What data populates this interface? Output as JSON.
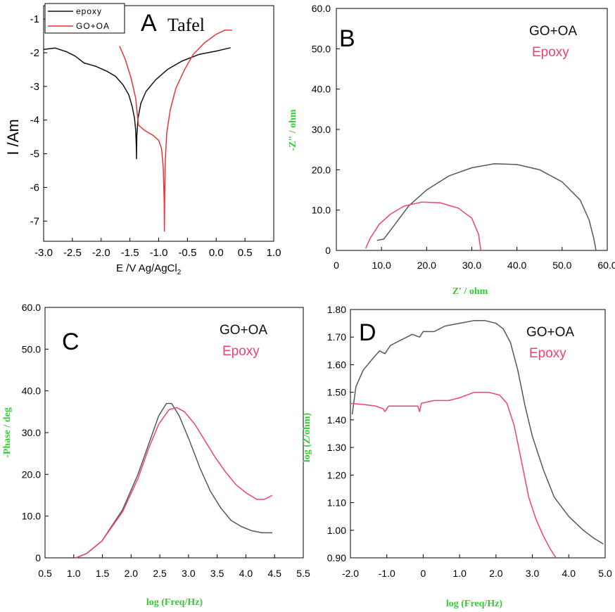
{
  "colors": {
    "gray": "#4f5a60",
    "pink": "#f0426e",
    "black": "#111111",
    "red": "#e8343a",
    "green": "#33cc33"
  },
  "chart_data": [
    {
      "id": "A",
      "letter": "A",
      "title": "Tafel",
      "type": "line",
      "xlabel": "E /V Ag/AgCl",
      "xlabel_sub": "2",
      "ylabel": "I /Am",
      "xlim": [
        -3.0,
        1.0
      ],
      "ylim": [
        -7.6,
        -0.6
      ],
      "xticks": [
        "-3.0",
        "-2.5",
        "-2.0",
        "-1.5",
        "-1.0",
        "-0.5",
        "0.0",
        "0.5",
        "1.0"
      ],
      "yticks": [
        "-1",
        "-2",
        "-3",
        "-4",
        "-5",
        "-6",
        "-7"
      ],
      "legend_position": "top-left",
      "series": [
        {
          "name": "epoxy",
          "color": "#111111",
          "points": [
            [
              -3.0,
              -1.9
            ],
            [
              -2.8,
              -1.86
            ],
            [
              -2.6,
              -1.97
            ],
            [
              -2.45,
              -2.1
            ],
            [
              -2.3,
              -2.3
            ],
            [
              -2.1,
              -2.4
            ],
            [
              -1.9,
              -2.55
            ],
            [
              -1.75,
              -2.7
            ],
            [
              -1.62,
              -2.95
            ],
            [
              -1.52,
              -3.25
            ],
            [
              -1.46,
              -3.6
            ],
            [
              -1.42,
              -3.95
            ],
            [
              -1.4,
              -4.3
            ],
            [
              -1.39,
              -4.7
            ],
            [
              -1.385,
              -5.15
            ],
            [
              -1.38,
              -4.5
            ],
            [
              -1.36,
              -3.95
            ],
            [
              -1.31,
              -3.5
            ],
            [
              -1.22,
              -3.15
            ],
            [
              -1.05,
              -2.8
            ],
            [
              -0.85,
              -2.5
            ],
            [
              -0.6,
              -2.25
            ],
            [
              -0.3,
              -2.05
            ],
            [
              0.0,
              -1.95
            ],
            [
              0.25,
              -1.85
            ]
          ]
        },
        {
          "name": "GO+OA",
          "color": "#e8343a",
          "points": [
            [
              -1.68,
              -1.8
            ],
            [
              -1.58,
              -2.2
            ],
            [
              -1.48,
              -2.75
            ],
            [
              -1.4,
              -3.35
            ],
            [
              -1.37,
              -3.85
            ],
            [
              -1.35,
              -4.15
            ],
            [
              -1.25,
              -4.3
            ],
            [
              -1.1,
              -4.45
            ],
            [
              -1.0,
              -4.6
            ],
            [
              -0.95,
              -4.85
            ],
            [
              -0.92,
              -5.4
            ],
            [
              -0.905,
              -6.4
            ],
            [
              -0.9,
              -7.3
            ],
            [
              -0.895,
              -6.2
            ],
            [
              -0.885,
              -5.2
            ],
            [
              -0.86,
              -4.4
            ],
            [
              -0.8,
              -3.7
            ],
            [
              -0.7,
              -3.05
            ],
            [
              -0.55,
              -2.5
            ],
            [
              -0.4,
              -2.05
            ],
            [
              -0.2,
              -1.7
            ],
            [
              0.0,
              -1.45
            ],
            [
              0.15,
              -1.33
            ],
            [
              0.28,
              -1.33
            ]
          ]
        }
      ]
    },
    {
      "id": "B",
      "letter": "B",
      "type": "line",
      "xlabel": "Z' / ohm",
      "ylabel": "-Z\" / ohm",
      "xlim": [
        0,
        60
      ],
      "ylim": [
        0,
        60
      ],
      "xticks": [
        "0",
        "10.0",
        "20.0",
        "30.0",
        "40.0",
        "50.0",
        "60.0"
      ],
      "yticks": [
        "0",
        "10.0",
        "20.0",
        "30.0",
        "40.0",
        "50.0",
        "60.0"
      ],
      "legend_position": "top-right",
      "series": [
        {
          "name": "GO+OA",
          "color": "#4f5a60",
          "points": [
            [
              9.0,
              2.5
            ],
            [
              10.5,
              2.8
            ],
            [
              13,
              6.5
            ],
            [
              16,
              11
            ],
            [
              20,
              15
            ],
            [
              25,
              18.5
            ],
            [
              30,
              20.5
            ],
            [
              35,
              21.5
            ],
            [
              40,
              21.3
            ],
            [
              45,
              20
            ],
            [
              50,
              17
            ],
            [
              54,
              12.5
            ],
            [
              56,
              7.5
            ],
            [
              57,
              3
            ],
            [
              57.5,
              0
            ]
          ]
        },
        {
          "name": "Epoxy",
          "color": "#f0426e",
          "points": [
            [
              6.5,
              0.5
            ],
            [
              7.5,
              3
            ],
            [
              9.5,
              6.5
            ],
            [
              12,
              9
            ],
            [
              15,
              11
            ],
            [
              19,
              12
            ],
            [
              23,
              11.8
            ],
            [
              27,
              10.5
            ],
            [
              30,
              8
            ],
            [
              31.5,
              4
            ],
            [
              32,
              0
            ]
          ]
        }
      ]
    },
    {
      "id": "C",
      "letter": "C",
      "type": "line",
      "xlabel": "log (Freq/Hz)",
      "ylabel": "-Phase / deg",
      "xlim": [
        0.5,
        5.5
      ],
      "ylim": [
        0,
        60
      ],
      "xticks": [
        "0.5",
        "1.0",
        "1.5",
        "2.0",
        "2.5",
        "3.0",
        "3.5",
        "4.0",
        "4.5",
        "5.5"
      ],
      "yticks": [
        "0",
        "10.0",
        "20.0",
        "30.0",
        "40.0",
        "50.0",
        "60.0"
      ],
      "legend_position": "top-right",
      "series": [
        {
          "name": "GO+OA",
          "color": "#4f5a60",
          "points": [
            [
              1.1,
              0
            ],
            [
              1.3,
              1
            ],
            [
              1.6,
              4
            ],
            [
              2.0,
              11.5
            ],
            [
              2.3,
              20
            ],
            [
              2.5,
              27
            ],
            [
              2.7,
              34
            ],
            [
              2.85,
              37
            ],
            [
              2.95,
              37
            ],
            [
              3.1,
              34
            ],
            [
              3.3,
              28
            ],
            [
              3.5,
              21.5
            ],
            [
              3.7,
              16
            ],
            [
              3.9,
              12
            ],
            [
              4.1,
              9
            ],
            [
              4.3,
              7.5
            ],
            [
              4.5,
              6.5
            ],
            [
              4.7,
              6
            ],
            [
              4.9,
              6
            ]
          ]
        },
        {
          "name": "Epoxy",
          "color": "#f0426e",
          "points": [
            [
              1.1,
              0
            ],
            [
              1.3,
              1
            ],
            [
              1.6,
              4
            ],
            [
              2.0,
              11
            ],
            [
              2.3,
              19
            ],
            [
              2.5,
              26
            ],
            [
              2.7,
              32
            ],
            [
              2.9,
              35.5
            ],
            [
              3.05,
              36
            ],
            [
              3.2,
              35
            ],
            [
              3.4,
              32
            ],
            [
              3.6,
              28
            ],
            [
              3.8,
              24
            ],
            [
              4.0,
              20.5
            ],
            [
              4.2,
              17.5
            ],
            [
              4.4,
              15.5
            ],
            [
              4.6,
              14
            ],
            [
              4.75,
              14
            ],
            [
              4.9,
              15
            ]
          ]
        }
      ]
    },
    {
      "id": "D",
      "letter": "D",
      "type": "line",
      "xlabel": "log (Freq/Hz)",
      "ylabel": "log (Z/ohm)",
      "xlim": [
        -2.0,
        5.0
      ],
      "ylim": [
        0.9,
        1.8
      ],
      "xticks": [
        "-2.0",
        "-1.0",
        "0",
        "1.0",
        "2.0",
        "3.0",
        "4.0",
        "5.0"
      ],
      "yticks": [
        "0.90",
        "1.00",
        "1.10",
        "1.20",
        "1.30",
        "1.40",
        "1.50",
        "1.60",
        "1.70",
        "1.80"
      ],
      "legend_position": "top-right",
      "series": [
        {
          "name": "GO+OA",
          "color": "#4f5a60",
          "points": [
            [
              -1.95,
              1.42
            ],
            [
              -1.85,
              1.52
            ],
            [
              -1.65,
              1.58
            ],
            [
              -1.4,
              1.62
            ],
            [
              -1.2,
              1.65
            ],
            [
              -1.05,
              1.64
            ],
            [
              -0.9,
              1.67
            ],
            [
              -0.6,
              1.69
            ],
            [
              -0.3,
              1.71
            ],
            [
              -0.1,
              1.7
            ],
            [
              0.0,
              1.72
            ],
            [
              0.3,
              1.72
            ],
            [
              0.6,
              1.74
            ],
            [
              1.0,
              1.75
            ],
            [
              1.4,
              1.76
            ],
            [
              1.7,
              1.76
            ],
            [
              2.0,
              1.75
            ],
            [
              2.2,
              1.73
            ],
            [
              2.4,
              1.68
            ],
            [
              2.6,
              1.58
            ],
            [
              2.8,
              1.45
            ],
            [
              3.0,
              1.34
            ],
            [
              3.3,
              1.22
            ],
            [
              3.6,
              1.12
            ],
            [
              4.0,
              1.05
            ],
            [
              4.4,
              1.0
            ],
            [
              4.7,
              0.97
            ],
            [
              4.95,
              0.95
            ]
          ]
        },
        {
          "name": "Epoxy",
          "color": "#f0426e",
          "points": [
            [
              -2.0,
              1.46
            ],
            [
              -1.6,
              1.455
            ],
            [
              -1.3,
              1.45
            ],
            [
              -1.1,
              1.44
            ],
            [
              -1.05,
              1.43
            ],
            [
              -0.95,
              1.45
            ],
            [
              -0.6,
              1.45
            ],
            [
              -0.3,
              1.45
            ],
            [
              -0.15,
              1.45
            ],
            [
              -0.1,
              1.43
            ],
            [
              -0.05,
              1.46
            ],
            [
              0.3,
              1.47
            ],
            [
              0.7,
              1.47
            ],
            [
              1.0,
              1.48
            ],
            [
              1.4,
              1.5
            ],
            [
              1.8,
              1.5
            ],
            [
              2.1,
              1.49
            ],
            [
              2.3,
              1.46
            ],
            [
              2.5,
              1.38
            ],
            [
              2.7,
              1.25
            ],
            [
              2.9,
              1.12
            ],
            [
              3.1,
              1.04
            ],
            [
              3.3,
              0.98
            ],
            [
              3.5,
              0.93
            ],
            [
              3.65,
              0.9
            ]
          ]
        }
      ]
    }
  ]
}
